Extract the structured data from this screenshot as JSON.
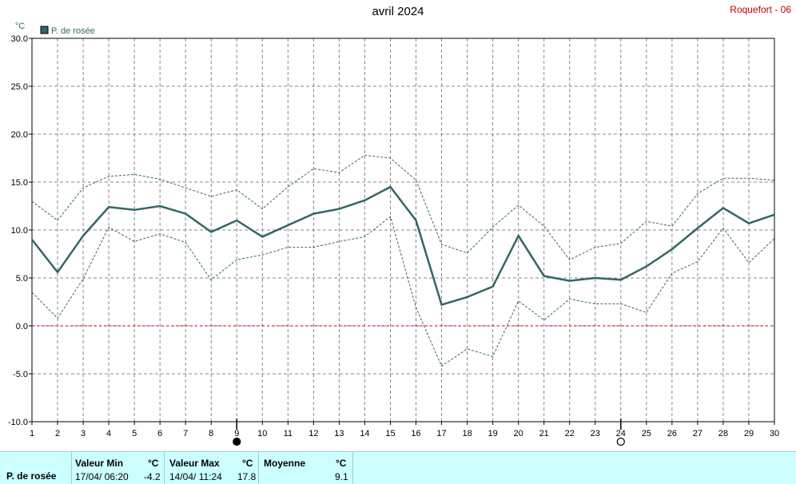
{
  "header": {
    "title": "avril 2024",
    "station": "Roquefort - 06"
  },
  "chart_data": {
    "type": "line",
    "title": "avril 2024",
    "ylabel": "°C",
    "ylim": [
      -10,
      30
    ],
    "yticks": [
      "30.0",
      "25.0",
      "20.0",
      "15.0",
      "10.0",
      "5.0",
      "0.0",
      "-5.0",
      "-10.0"
    ],
    "x": [
      1,
      2,
      3,
      4,
      5,
      6,
      7,
      8,
      9,
      10,
      11,
      12,
      13,
      14,
      15,
      16,
      17,
      18,
      19,
      20,
      21,
      22,
      23,
      24,
      25,
      26,
      27,
      28,
      29,
      30
    ],
    "legend": "top-left",
    "grid": true,
    "zero_line": true,
    "moon_markers": [
      {
        "day": 9,
        "phase": "new"
      },
      {
        "day": 24,
        "phase": "full"
      }
    ],
    "series": [
      {
        "name": "P. de rosée",
        "role": "mean",
        "color": "#336666",
        "values": [
          9.0,
          5.6,
          9.4,
          12.4,
          12.1,
          12.5,
          11.7,
          9.8,
          11.0,
          9.3,
          10.5,
          11.7,
          12.2,
          13.1,
          14.5,
          11.0,
          2.2,
          3.0,
          4.1,
          9.4,
          5.2,
          4.7,
          5.0,
          4.8,
          6.2,
          8.0,
          10.2,
          12.3,
          10.7,
          11.6
        ]
      },
      {
        "role": "max",
        "color": "#336666",
        "values": [
          13.0,
          11.0,
          14.4,
          15.6,
          15.8,
          15.3,
          14.4,
          13.5,
          14.2,
          12.2,
          14.5,
          16.4,
          16.0,
          17.8,
          17.5,
          15.2,
          8.5,
          7.6,
          10.3,
          12.6,
          10.4,
          6.9,
          8.2,
          8.6,
          10.9,
          10.4,
          13.8,
          15.4,
          15.4,
          15.2
        ]
      },
      {
        "role": "min",
        "color": "#336666",
        "values": [
          3.5,
          0.8,
          4.9,
          10.3,
          8.8,
          9.6,
          8.7,
          4.8,
          6.9,
          7.4,
          8.2,
          8.2,
          8.8,
          9.3,
          11.4,
          1.9,
          -4.2,
          -2.4,
          -3.2,
          2.6,
          0.6,
          2.8,
          2.3,
          2.3,
          1.4,
          5.5,
          6.7,
          10.2,
          6.6,
          9.1
        ]
      }
    ]
  },
  "summary": {
    "param": "P. de rosée",
    "min_label": "Valeur Min",
    "min_unit": "°C",
    "min_date": "17/04/  06:20",
    "min_value": "-4.2",
    "max_label": "Valeur Max",
    "max_unit": "°C",
    "max_date": "14/04/  11:24",
    "max_value": "17.8",
    "avg_label": "Moyenne",
    "avg_unit": "°C",
    "avg_value": "9.1"
  }
}
